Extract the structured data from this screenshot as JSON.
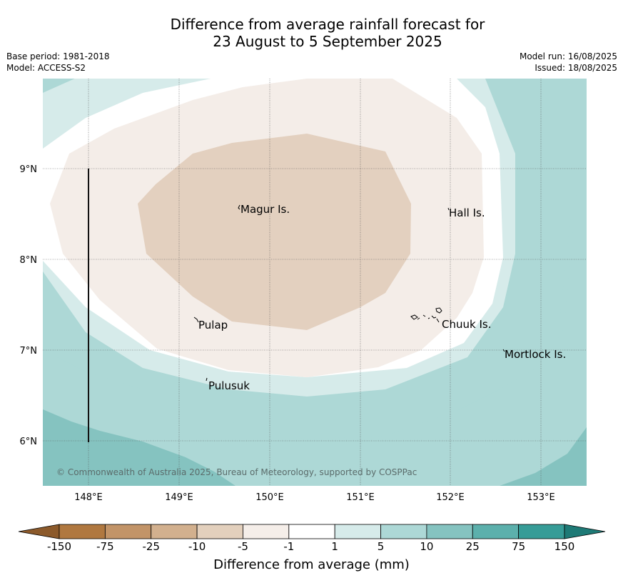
{
  "title": {
    "line1": "Difference from average rainfall forecast for",
    "line2": "23 August to 5 September 2025"
  },
  "meta": {
    "base_period": "Base period: 1981-2018",
    "model": "Model: ACCESS-S2",
    "model_run": "Model run: 16/08/2025",
    "issued": "Issued: 18/08/2025"
  },
  "axes": {
    "x_ticks": [
      "148°E",
      "149°E",
      "150°E",
      "151°E",
      "152°E",
      "153°E"
    ],
    "y_ticks": [
      "9°N",
      "8°N",
      "7°N",
      "6°N"
    ]
  },
  "places": [
    {
      "name": "Magur Is."
    },
    {
      "name": "Hall Is."
    },
    {
      "name": "Pulap"
    },
    {
      "name": "Chuuk Is."
    },
    {
      "name": "Mortlock Is."
    },
    {
      "name": "Pulusuk"
    }
  ],
  "copyright": "© Commonwealth of Australia 2025, Bureau of Meteorology, supported by COSPPac",
  "colorbar": {
    "labels": [
      "-150",
      "-75",
      "-25",
      "-10",
      "-5",
      "-1",
      "1",
      "5",
      "10",
      "25",
      "75",
      "150"
    ],
    "colors": [
      "#8c5a2b",
      "#b07840",
      "#c29468",
      "#d2b08e",
      "#e3d0bd",
      "#f5eee9",
      "#ffffff",
      "#d6ebea",
      "#add8d6",
      "#85c3c0",
      "#5cb0ac",
      "#369c97",
      "#1e7a76"
    ],
    "title": "Difference from average (mm)"
  }
}
